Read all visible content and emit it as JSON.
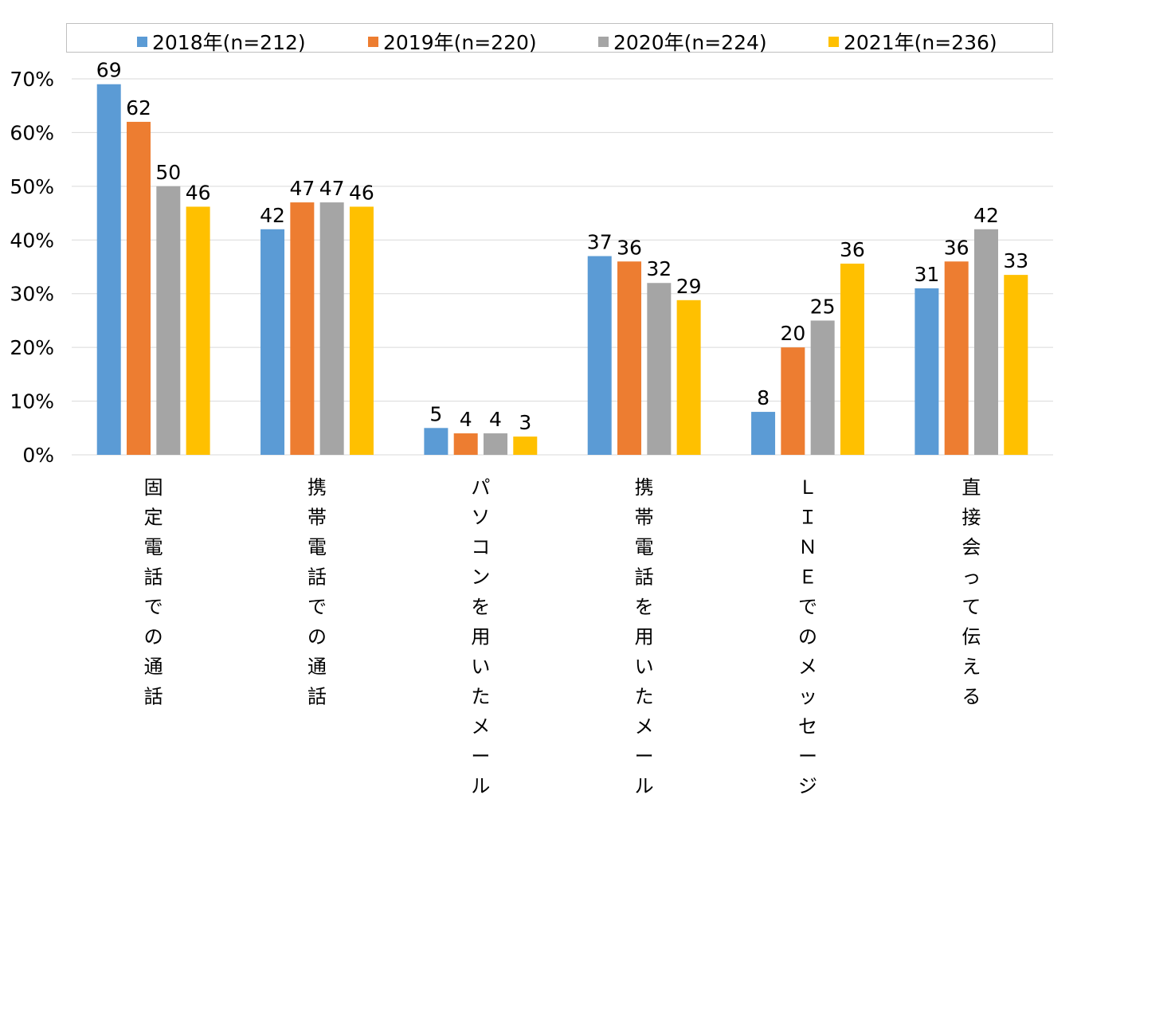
{
  "chart_data": {
    "type": "bar",
    "categories": [
      "固定電話での通話",
      "携帯電話での通話",
      "パソコンを用いたメール",
      "携帯電話を用いたメール",
      "ＬＩＮＥでのメッセージ",
      "直接会って伝える"
    ],
    "series": [
      {
        "name": "2018年(n=212)",
        "color": "#5b9bd5",
        "values": [
          69,
          42,
          5,
          37,
          8,
          31
        ]
      },
      {
        "name": "2019年(n=220)",
        "color": "#ed7d31",
        "values": [
          62,
          47,
          4,
          36,
          20,
          36
        ]
      },
      {
        "name": "2020年(n=224)",
        "color": "#a5a5a5",
        "values": [
          50,
          47,
          4,
          32,
          25,
          42
        ]
      },
      {
        "name": "2021年(n=236)",
        "color": "#ffc000",
        "values": [
          46,
          46,
          3,
          29,
          36,
          33
        ]
      }
    ],
    "bar_values": [
      [
        69,
        42,
        5,
        37,
        8,
        31
      ],
      [
        62,
        47,
        4,
        36,
        20,
        36
      ],
      [
        50,
        47,
        4,
        32,
        25,
        42
      ],
      [
        46.2,
        46.2,
        3.4,
        28.8,
        35.6,
        33.5
      ]
    ],
    "ylim": [
      0,
      70
    ],
    "y_ticks": [
      0,
      10,
      20,
      30,
      40,
      50,
      60,
      70
    ],
    "y_tick_labels": [
      "0%",
      "10%",
      "20%",
      "30%",
      "40%",
      "50%",
      "60%",
      "70%"
    ],
    "grid": true,
    "legend_position": "top",
    "category_label_orientation": "vertical",
    "title": "",
    "xlabel": "",
    "ylabel": ""
  }
}
